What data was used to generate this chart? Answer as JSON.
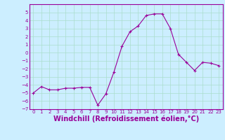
{
  "x": [
    0,
    1,
    2,
    3,
    4,
    5,
    6,
    7,
    8,
    9,
    10,
    11,
    12,
    13,
    14,
    15,
    16,
    17,
    18,
    19,
    20,
    21,
    22,
    23
  ],
  "y": [
    -5.0,
    -4.2,
    -4.6,
    -4.6,
    -4.4,
    -4.4,
    -4.3,
    -4.3,
    -6.5,
    -5.1,
    -2.4,
    0.8,
    2.6,
    3.3,
    4.6,
    4.8,
    4.8,
    3.0,
    -0.2,
    -1.2,
    -2.2,
    -1.2,
    -1.3,
    -1.6
  ],
  "line_color": "#990099",
  "marker": "+",
  "marker_size": 3,
  "bg_color": "#cceeff",
  "grid_color": "#aaddcc",
  "xlabel": "Windchill (Refroidissement éolien,°C)",
  "xlabel_color": "#990099",
  "xlabel_fontsize": 7,
  "xtick_fontsize": 5,
  "ytick_fontsize": 5,
  "tick_color": "#990099",
  "ylim": [
    -7,
    6
  ],
  "xlim": [
    -0.5,
    23.5
  ],
  "yticks": [
    -7,
    -6,
    -5,
    -4,
    -3,
    -2,
    -1,
    0,
    1,
    2,
    3,
    4,
    5
  ],
  "xticks": [
    0,
    1,
    2,
    3,
    4,
    5,
    6,
    7,
    8,
    9,
    10,
    11,
    12,
    13,
    14,
    15,
    16,
    17,
    18,
    19,
    20,
    21,
    22,
    23
  ]
}
